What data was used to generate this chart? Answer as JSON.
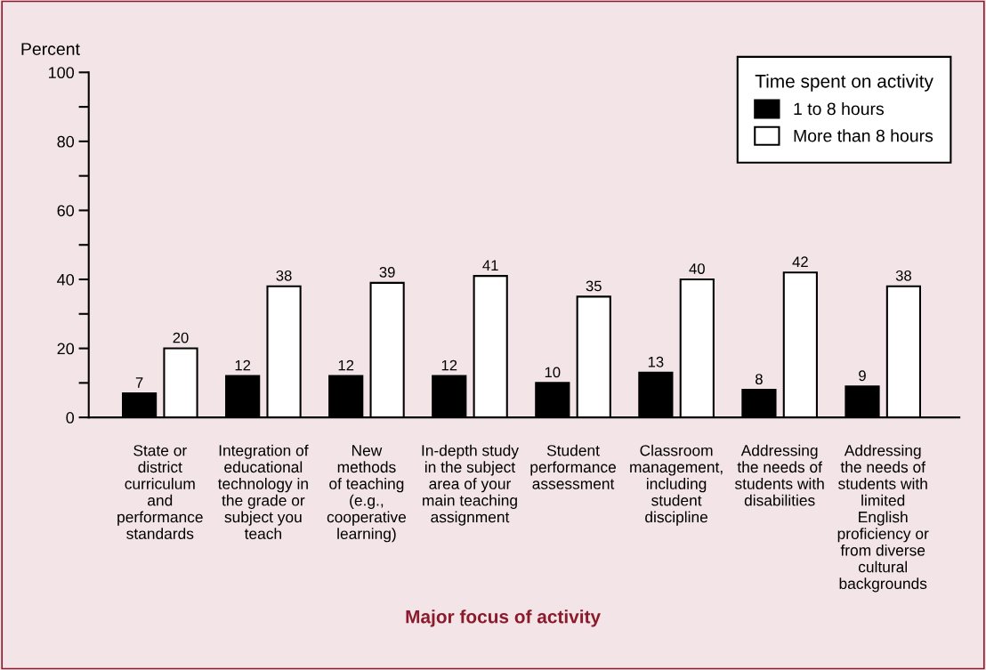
{
  "chart_data": {
    "type": "bar",
    "ylabel": "Percent",
    "xlabel": "Major focus of activity",
    "legend_title": "Time spent on activity",
    "categories": [
      "State or\ndistrict\ncurriculum\nand\nperformance\nstandards",
      "Integration of\neducational\ntechnology in\nthe grade or\nsubject you\nteach",
      "New\nmethods\nof teaching\n(e.g.,\ncooperative\nlearning)",
      "In-depth study\nin the subject\narea of your\nmain teaching\nassignment",
      "Student\nperformance\nassessment",
      "Classroom\nmanagement,\nincluding\nstudent\ndiscipline",
      "Addressing\nthe needs of\nstudents with\ndisabilities",
      "Addressing\nthe needs of\nstudents with\nlimited\nEnglish\nproficiency or\nfrom diverse\ncultural\nbackgrounds"
    ],
    "series": [
      {
        "name": "1 to 8 hours",
        "color": "#000000",
        "values": [
          7,
          12,
          12,
          12,
          10,
          13,
          8,
          9
        ]
      },
      {
        "name": "More than 8 hours",
        "color": "#ffffff",
        "values": [
          20,
          38,
          39,
          41,
          35,
          40,
          42,
          38
        ]
      }
    ],
    "ylim": [
      0,
      100
    ],
    "yticks": [
      0,
      {
        "value": 10,
        "label": null
      },
      20,
      {
        "value": 30,
        "label": null
      },
      40,
      {
        "value": 50,
        "label": null
      },
      60,
      {
        "value": 70,
        "label": null
      },
      80,
      {
        "value": 90,
        "label": null
      },
      100
    ],
    "data_labels": true,
    "legend": "top right",
    "grid": false
  }
}
